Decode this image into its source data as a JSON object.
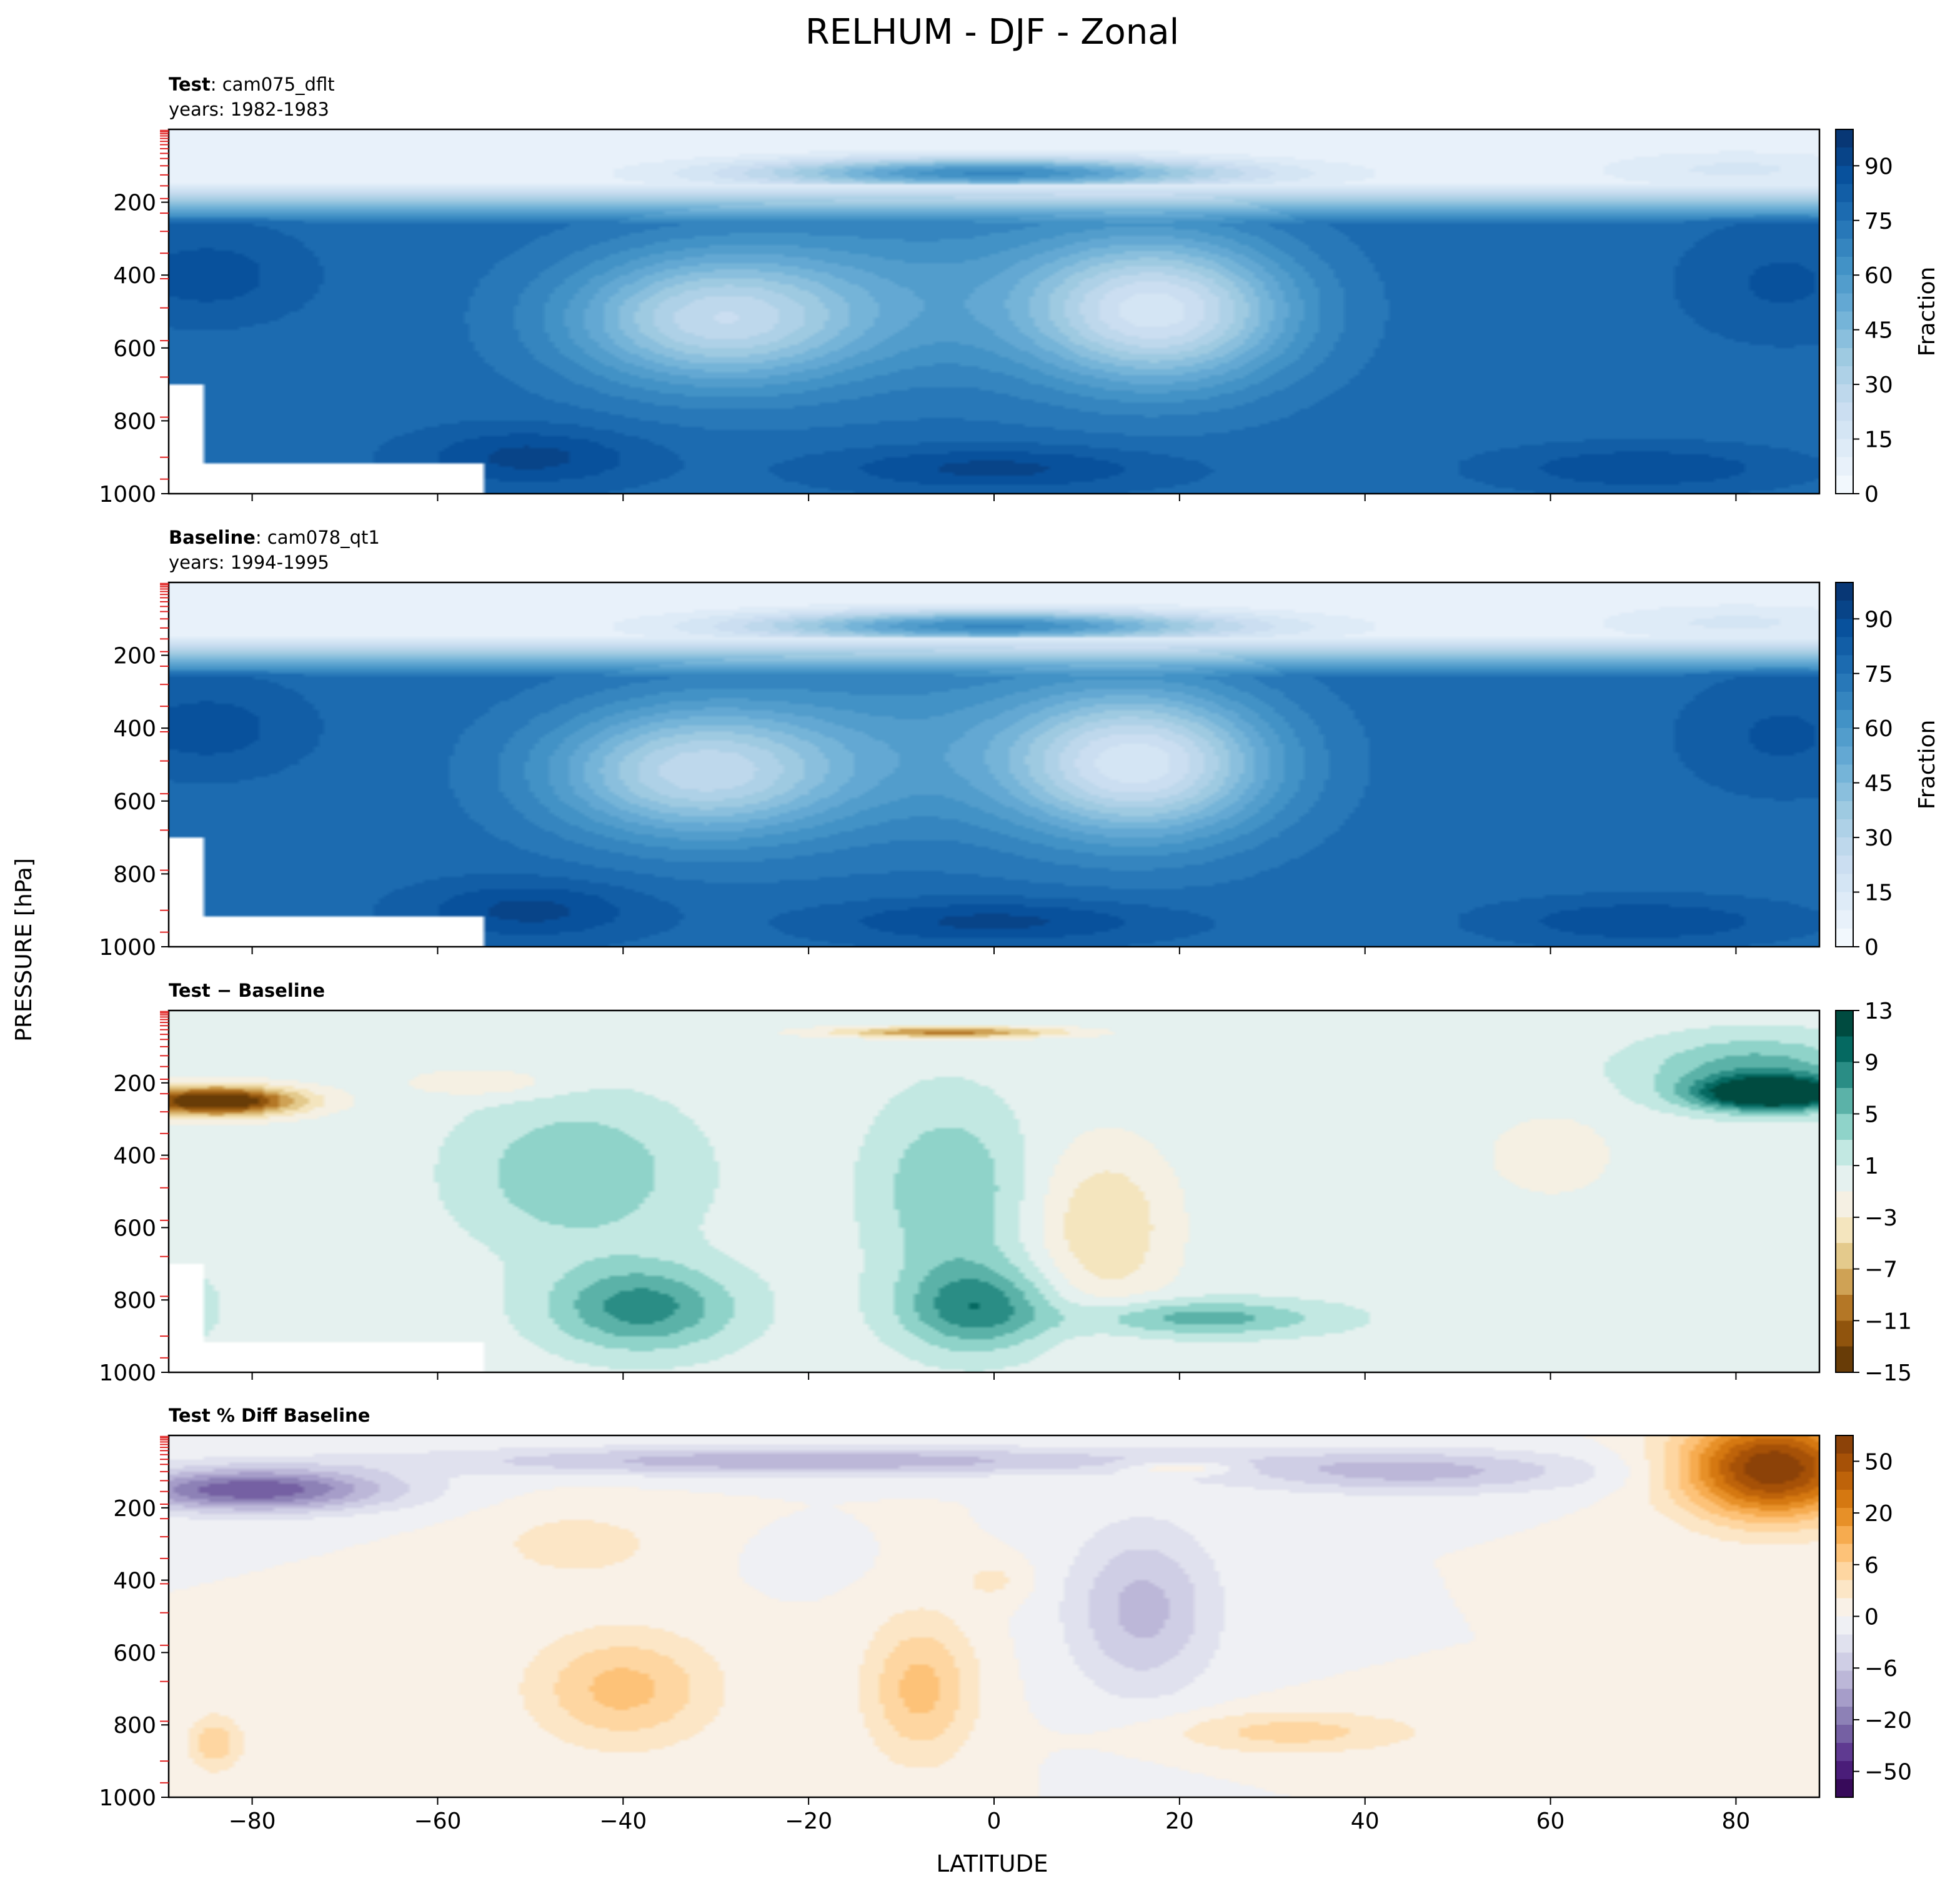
{
  "figure": {
    "title": "RELHUM - DJF - Zonal",
    "ylabel": "PRESSURE [hPa]",
    "xlabel": "LATITUDE"
  },
  "chart_data": [
    {
      "type": "heatmap",
      "panel": "test",
      "title_bold": "Test",
      "title_rest": ": cam075_dflt",
      "subtitle": "years: 1982-1983",
      "xlim": [
        -89,
        89
      ],
      "ylim": [
        1000,
        0
      ],
      "y_inverted": true,
      "x_ticks": [
        -80,
        -60,
        -40,
        -20,
        0,
        20,
        40,
        60,
        80
      ],
      "y_ticks": [
        200,
        400,
        600,
        800,
        1000
      ],
      "colorbar_label": "Fraction",
      "colorbar_range": [
        0,
        100
      ],
      "colorbar_ticks": [
        "0",
        "15",
        "30",
        "45",
        "60",
        "75",
        "90"
      ],
      "colormap": "Blues",
      "grid": false,
      "features": {
        "upper_band_top": 150,
        "upper_band_bottom": 260,
        "dry_centers": [
          {
            "lat": -30,
            "p": 530,
            "value": 30
          },
          {
            "lat": 18,
            "p": 500,
            "value": 22
          }
        ],
        "moist_tropopause": {
          "lat": 0,
          "p": 130,
          "value": 75
        },
        "surface_mask": "below ~920 hPa poleward of 55S; below ~700 hPa poleward of 85S"
      }
    },
    {
      "type": "heatmap",
      "panel": "baseline",
      "title_bold": "Baseline",
      "title_rest": ": cam078_qt1",
      "subtitle": "years: 1994-1995",
      "xlim": [
        -89,
        89
      ],
      "ylim": [
        1000,
        0
      ],
      "y_inverted": true,
      "x_ticks": [
        -80,
        -60,
        -40,
        -20,
        0,
        20,
        40,
        60,
        80
      ],
      "y_ticks": [
        200,
        400,
        600,
        800,
        1000
      ],
      "colorbar_label": "Fraction",
      "colorbar_range": [
        0,
        100
      ],
      "colorbar_ticks": [
        "0",
        "15",
        "30",
        "45",
        "60",
        "75",
        "90"
      ],
      "colormap": "Blues",
      "grid": false,
      "features": {
        "upper_band_top": 150,
        "upper_band_bottom": 250,
        "dry_centers": [
          {
            "lat": -32,
            "p": 520,
            "value": 32
          },
          {
            "lat": 16,
            "p": 500,
            "value": 25
          }
        ]
      }
    },
    {
      "type": "heatmap",
      "panel": "difference",
      "title_bold": "Test − Baseline",
      "xlim": [
        -89,
        89
      ],
      "ylim": [
        1000,
        0
      ],
      "y_inverted": true,
      "x_ticks": [
        -80,
        -60,
        -40,
        -20,
        0,
        20,
        40,
        60,
        80
      ],
      "y_ticks": [
        200,
        400,
        600,
        800,
        1000
      ],
      "colorbar_range": [
        -15,
        13
      ],
      "colorbar_ticks": [
        "−15",
        "−11",
        "−7",
        "−3",
        "1",
        "5",
        "9",
        "13"
      ],
      "colormap": "BrBG",
      "grid": false,
      "features": {
        "negative_max": {
          "lat": -84,
          "p": 250,
          "value": -15
        },
        "positive_max": {
          "lat": 84,
          "p": 230,
          "value": 13
        },
        "positive_lobes": [
          {
            "lat": -38,
            "p": 830,
            "value": 9
          },
          {
            "lat": -2,
            "p": 830,
            "value": 9
          },
          {
            "lat": 20,
            "p": 850,
            "value": 8
          }
        ],
        "negative_lobes": [
          {
            "lat": 12,
            "p": 650,
            "value": -5
          },
          {
            "lat": -5,
            "p": 60,
            "value": -11
          }
        ]
      }
    },
    {
      "type": "heatmap",
      "panel": "percent_difference",
      "title_bold": "Test % Diff Baseline",
      "xlim": [
        -89,
        89
      ],
      "ylim": [
        1000,
        0
      ],
      "y_inverted": true,
      "x_ticks": [
        -80,
        -60,
        -40,
        -20,
        0,
        20,
        40,
        60,
        80
      ],
      "y_ticks": [
        200,
        400,
        600,
        800,
        1000
      ],
      "colorbar_ticks": [
        "−50",
        "−20",
        "−6",
        "0",
        "6",
        "20",
        "50"
      ],
      "colormap": "PuOr_r",
      "grid": false,
      "features": {
        "positive_max": {
          "lat": 84,
          "p": 100,
          "value": 50
        },
        "negative_upper": {
          "lat": -80,
          "p": 140,
          "value": -40
        },
        "negative_lobe": {
          "lat": 16,
          "p": 480,
          "value": -20
        },
        "positive_lobes": [
          {
            "lat": -40,
            "p": 700,
            "value": 20
          },
          {
            "lat": -8,
            "p": 700,
            "value": 20
          },
          {
            "lat": 30,
            "p": 830,
            "value": 15
          }
        ]
      }
    }
  ]
}
